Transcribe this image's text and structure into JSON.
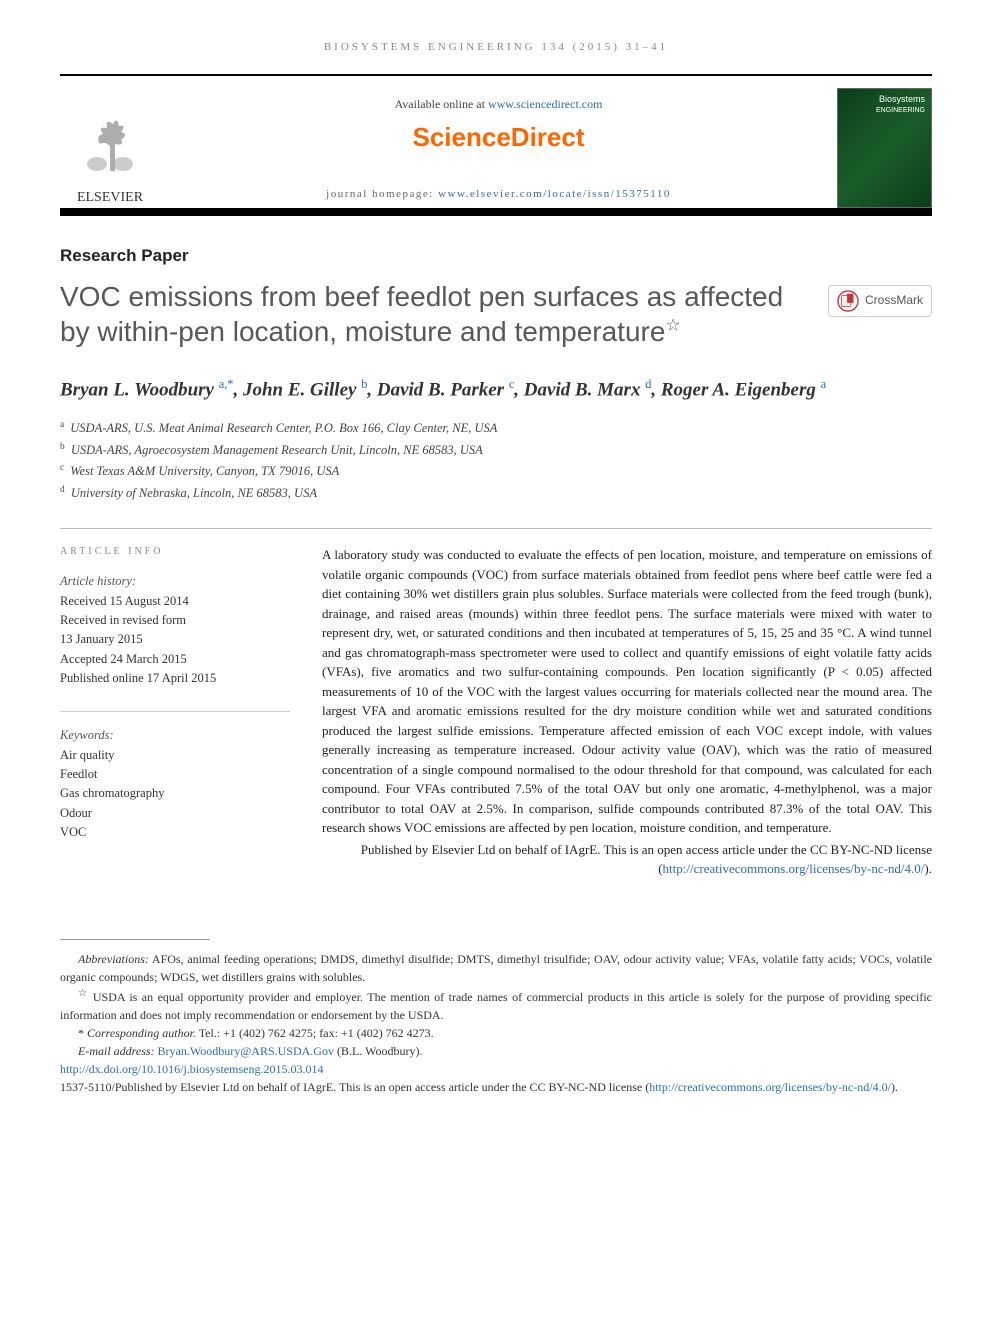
{
  "journal_ref": "BIOSYSTEMS ENGINEERING 134 (2015) 31–41",
  "header": {
    "available_prefix": "Available online at ",
    "available_link": "www.sciencedirect.com",
    "sd_logo": "ScienceDirect",
    "homepage_prefix": "journal homepage: ",
    "homepage_link": "www.elsevier.com/locate/issn/15375110",
    "elsevier_label": "ELSEVIER",
    "cover_title1": "Biosystems",
    "cover_title2": "ENGINEERING",
    "crossmark": "CrossMark"
  },
  "article_type": "Research Paper",
  "title": "VOC emissions from beef feedlot pen surfaces as affected by within-pen location, moisture and temperature",
  "title_star": "☆",
  "authors_html": "Bryan L. Woodbury <sup>a,</sup><sup class='star'>*</sup>, John E. Gilley <sup>b</sup>, David B. Parker <sup>c</sup>, David B. Marx <sup>d</sup>, Roger A. Eigenberg <sup>a</sup>",
  "affiliations": [
    {
      "sup": "a",
      "text": "USDA-ARS, U.S. Meat Animal Research Center, P.O. Box 166, Clay Center, NE, USA"
    },
    {
      "sup": "b",
      "text": "USDA-ARS, Agroecosystem Management Research Unit, Lincoln, NE 68583, USA"
    },
    {
      "sup": "c",
      "text": "West Texas A&M University, Canyon, TX 79016, USA"
    },
    {
      "sup": "d",
      "text": "University of Nebraska, Lincoln, NE 68583, USA"
    }
  ],
  "info_head": "ARTICLE INFO",
  "history_label": "Article history:",
  "history": [
    "Received 15 August 2014",
    "Received in revised form",
    "13 January 2015",
    "Accepted 24 March 2015",
    "Published online 17 April 2015"
  ],
  "keywords_label": "Keywords:",
  "keywords": [
    "Air quality",
    "Feedlot",
    "Gas chromatography",
    "Odour",
    "VOC"
  ],
  "abstract": "A laboratory study was conducted to evaluate the effects of pen location, moisture, and temperature on emissions of volatile organic compounds (VOC) from surface materials obtained from feedlot pens where beef cattle were fed a diet containing 30% wet distillers grain plus solubles. Surface materials were collected from the feed trough (bunk), drainage, and raised areas (mounds) within three feedlot pens. The surface materials were mixed with water to represent dry, wet, or saturated conditions and then incubated at temperatures of 5, 15, 25 and 35 °C. A wind tunnel and gas chromatograph-mass spectrometer were used to collect and quantify emissions of eight volatile fatty acids (VFAs), five aromatics and two sulfur-containing compounds. Pen location significantly (P < 0.05) affected measurements of 10 of the VOC with the largest values occurring for materials collected near the mound area. The largest VFA and aromatic emissions resulted for the dry moisture condition while wet and saturated conditions produced the largest sulfide emissions. Temperature affected emission of each VOC except indole, with values generally increasing as temperature increased. Odour activity value (OAV), which was the ratio of measured concentration of a single compound normalised to the odour threshold for that compound, was calculated for each compound. Four VFAs contributed 7.5% of the total OAV but only one aromatic, 4-methylphenol, was a major contributor to total OAV at 2.5%. In comparison, sulfide compounds contributed 87.3% of the total OAV. This research shows VOC emissions are affected by pen location, moisture condition, and temperature.",
  "pub_note_prefix": "Published by Elsevier Ltd on behalf of IAgrE. This is an open access article under the CC BY-NC-ND license (",
  "pub_note_link": "http://creativecommons.org/licenses/by-nc-nd/4.0/",
  "pub_note_suffix": ").",
  "footnotes": {
    "abbrev_label": "Abbreviations:",
    "abbrev_text": " AFOs, animal feeding operations; DMDS, dimethyl disulfide; DMTS, dimethyl trisulfide; OAV, odour activity value; VFAs, volatile fatty acids; VOCs, volatile organic compounds; WDGS, wet distillers grains with solubles.",
    "star_mark": "☆",
    "star_text": " USDA is an equal opportunity provider and employer. The mention of trade names of commercial products in this article is solely for the purpose of providing specific information and does not imply recommendation or endorsement by the USDA.",
    "corr_mark": "*",
    "corr_label": " Corresponding author.",
    "corr_text": " Tel.: +1 (402) 762 4275; fax: +1 (402) 762 4273.",
    "email_label": "E-mail address: ",
    "email": "Bryan.Woodbury@ARS.USDA.Gov",
    "email_suffix": " (B.L. Woodbury).",
    "doi": "http://dx.doi.org/10.1016/j.biosystemseng.2015.03.014",
    "issn_line_prefix": "1537-5110/Published by Elsevier Ltd on behalf of IAgrE. This is an open access article under the CC BY-NC-ND license (",
    "issn_link": "http://creativecommons.org/licenses/by-nc-nd/4.0/",
    "issn_line_suffix": ")."
  },
  "colors": {
    "link": "#2a6db8",
    "sd_orange": "#ff6600",
    "title_grey": "#585858"
  }
}
